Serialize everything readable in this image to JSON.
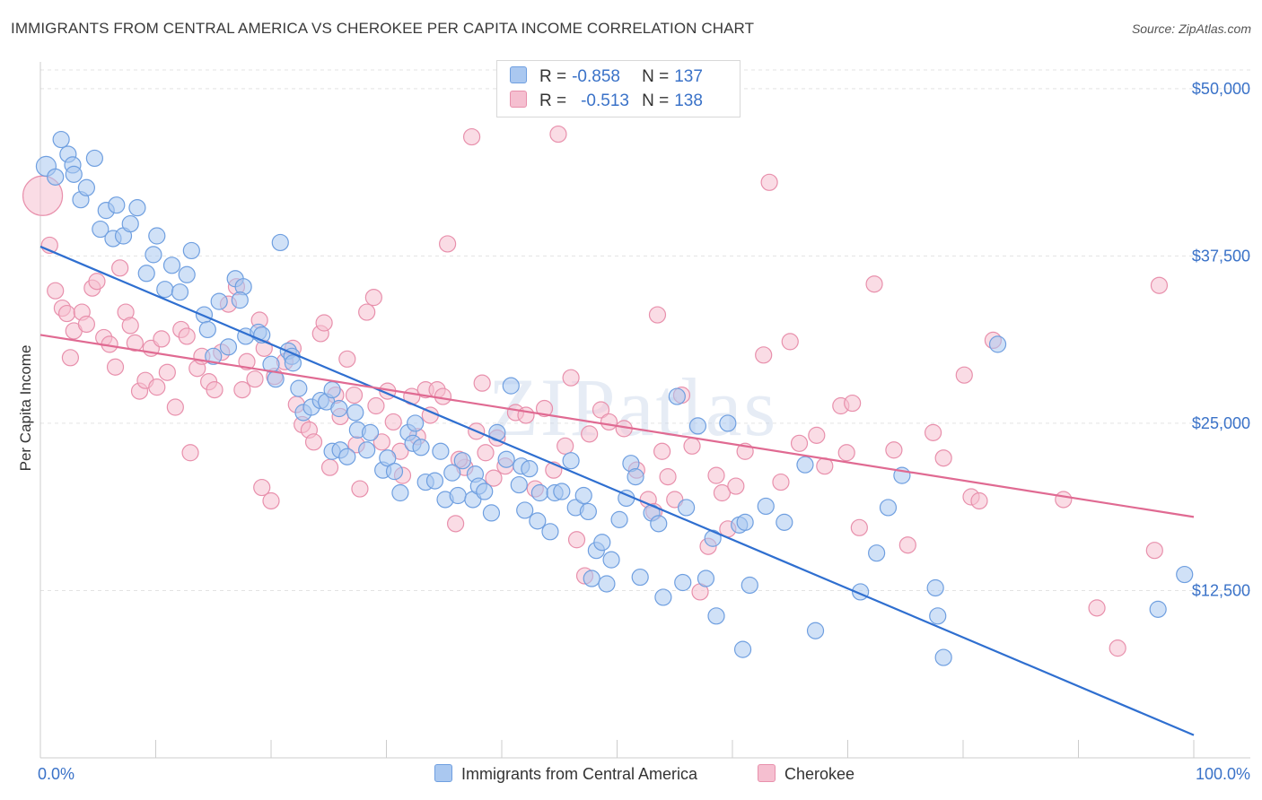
{
  "title": "IMMIGRANTS FROM CENTRAL AMERICA VS CHEROKEE PER CAPITA INCOME CORRELATION CHART",
  "source": "Source: ZipAtlas.com",
  "watermark": "ZIPatlas",
  "legend": {
    "r_label": "R =",
    "n_label": "N =",
    "series": [
      {
        "name": "Immigrants from Central America",
        "r": "-0.858",
        "n": "137",
        "color": "#6f9fe0",
        "fill": "#aac8f0",
        "line": "#2f6fd0"
      },
      {
        "name": "Cherokee",
        "r": "-0.513",
        "n": "138",
        "color": "#e890ac",
        "fill": "#f5bfd0",
        "line": "#e06a92"
      }
    ]
  },
  "chart_data": {
    "type": "scatter",
    "title": "IMMIGRANTS FROM CENTRAL AMERICA VS CHEROKEE PER CAPITA INCOME CORRELATION CHART",
    "xlabel": "",
    "ylabel": "Per Capita Income",
    "xlim": [
      0,
      100
    ],
    "ylim": [
      0,
      52000
    ],
    "x_tick_labels": [
      "0.0%",
      "100.0%"
    ],
    "y_ticks": [
      12500,
      25000,
      37500,
      50000
    ],
    "y_tick_labels": [
      "$12,500",
      "$25,000",
      "$37,500",
      "$50,000"
    ],
    "grid": true,
    "series": [
      {
        "name": "Immigrants from Central America",
        "trend": {
          "x": [
            0,
            100
          ],
          "y": [
            38200,
            1700
          ]
        },
        "points": [
          [
            0.5,
            44200
          ],
          [
            1.3,
            43400
          ],
          [
            1.8,
            46200
          ],
          [
            2.4,
            45100
          ],
          [
            2.8,
            44300
          ],
          [
            2.9,
            43600
          ],
          [
            3.5,
            41700
          ],
          [
            4.0,
            42600
          ],
          [
            4.7,
            44800
          ],
          [
            5.2,
            39500
          ],
          [
            5.7,
            40900
          ],
          [
            6.3,
            38800
          ],
          [
            6.6,
            41300
          ],
          [
            7.2,
            39000
          ],
          [
            7.8,
            39900
          ],
          [
            8.4,
            41100
          ],
          [
            9.2,
            36200
          ],
          [
            9.8,
            37600
          ],
          [
            10.1,
            39000
          ],
          [
            10.8,
            35000
          ],
          [
            11.4,
            36800
          ],
          [
            12.1,
            34800
          ],
          [
            12.7,
            36100
          ],
          [
            13.1,
            37900
          ],
          [
            14.2,
            33100
          ],
          [
            14.5,
            32000
          ],
          [
            15.0,
            30000
          ],
          [
            15.5,
            34100
          ],
          [
            16.3,
            30700
          ],
          [
            16.9,
            35800
          ],
          [
            17.6,
            35200
          ],
          [
            17.3,
            34200
          ],
          [
            17.8,
            31500
          ],
          [
            18.9,
            31800
          ],
          [
            19.2,
            31600
          ],
          [
            20.0,
            29400
          ],
          [
            20.4,
            28300
          ],
          [
            20.8,
            38500
          ],
          [
            21.5,
            30400
          ],
          [
            21.8,
            30000
          ],
          [
            21.9,
            29500
          ],
          [
            22.4,
            27600
          ],
          [
            22.8,
            25800
          ],
          [
            23.5,
            26200
          ],
          [
            24.3,
            26700
          ],
          [
            24.8,
            26600
          ],
          [
            25.3,
            27500
          ],
          [
            25.3,
            22900
          ],
          [
            25.9,
            26100
          ],
          [
            26.0,
            23000
          ],
          [
            26.6,
            22500
          ],
          [
            27.3,
            25800
          ],
          [
            27.5,
            24500
          ],
          [
            28.3,
            23000
          ],
          [
            28.6,
            24300
          ],
          [
            29.7,
            21500
          ],
          [
            30.1,
            22400
          ],
          [
            30.7,
            21400
          ],
          [
            31.2,
            19800
          ],
          [
            31.9,
            24300
          ],
          [
            32.3,
            23500
          ],
          [
            32.5,
            25000
          ],
          [
            33.0,
            23200
          ],
          [
            33.4,
            20600
          ],
          [
            34.2,
            20700
          ],
          [
            34.7,
            22900
          ],
          [
            35.1,
            19300
          ],
          [
            35.7,
            21300
          ],
          [
            36.2,
            19600
          ],
          [
            36.6,
            22200
          ],
          [
            37.5,
            19300
          ],
          [
            37.7,
            21200
          ],
          [
            38.0,
            20300
          ],
          [
            38.5,
            19900
          ],
          [
            39.1,
            18300
          ],
          [
            39.6,
            24300
          ],
          [
            40.4,
            22300
          ],
          [
            40.8,
            27800
          ],
          [
            41.5,
            20400
          ],
          [
            41.7,
            21800
          ],
          [
            42.0,
            18500
          ],
          [
            42.4,
            21600
          ],
          [
            43.1,
            17700
          ],
          [
            43.3,
            19800
          ],
          [
            44.2,
            16900
          ],
          [
            44.6,
            19800
          ],
          [
            45.2,
            19900
          ],
          [
            46.0,
            22200
          ],
          [
            46.4,
            18700
          ],
          [
            47.1,
            19600
          ],
          [
            47.5,
            18400
          ],
          [
            47.8,
            13400
          ],
          [
            48.2,
            15500
          ],
          [
            48.7,
            16100
          ],
          [
            49.1,
            13000
          ],
          [
            49.5,
            14800
          ],
          [
            50.2,
            17800
          ],
          [
            50.8,
            19400
          ],
          [
            51.2,
            22000
          ],
          [
            51.6,
            21000
          ],
          [
            52.0,
            13500
          ],
          [
            53.0,
            18300
          ],
          [
            53.6,
            17500
          ],
          [
            54.0,
            12000
          ],
          [
            55.2,
            27000
          ],
          [
            55.7,
            13100
          ],
          [
            56.0,
            18700
          ],
          [
            57.0,
            24800
          ],
          [
            57.7,
            13400
          ],
          [
            58.3,
            16400
          ],
          [
            58.6,
            10600
          ],
          [
            59.6,
            25000
          ],
          [
            60.6,
            17400
          ],
          [
            61.1,
            17600
          ],
          [
            60.9,
            8100
          ],
          [
            61.5,
            12900
          ],
          [
            62.9,
            18800
          ],
          [
            64.5,
            17600
          ],
          [
            66.3,
            21900
          ],
          [
            67.2,
            9500
          ],
          [
            71.1,
            12400
          ],
          [
            72.5,
            15300
          ],
          [
            73.5,
            18700
          ],
          [
            74.7,
            21100
          ],
          [
            77.6,
            12700
          ],
          [
            77.8,
            10600
          ],
          [
            78.3,
            7500
          ],
          [
            83.0,
            30900
          ],
          [
            99.2,
            13700
          ],
          [
            96.9,
            11100
          ]
        ]
      },
      {
        "name": "Cherokee",
        "trend": {
          "x": [
            0,
            100
          ],
          "y": [
            31600,
            18000
          ]
        },
        "points": [
          [
            0.2,
            42000
          ],
          [
            0.8,
            38300
          ],
          [
            1.3,
            34900
          ],
          [
            1.9,
            33600
          ],
          [
            2.3,
            33200
          ],
          [
            2.6,
            29900
          ],
          [
            2.9,
            31900
          ],
          [
            3.6,
            33300
          ],
          [
            4.0,
            32400
          ],
          [
            4.5,
            35100
          ],
          [
            4.9,
            35600
          ],
          [
            5.5,
            31400
          ],
          [
            6.0,
            30900
          ],
          [
            6.5,
            29200
          ],
          [
            6.9,
            36600
          ],
          [
            7.4,
            33300
          ],
          [
            7.8,
            32300
          ],
          [
            8.2,
            31000
          ],
          [
            8.6,
            27400
          ],
          [
            9.1,
            28200
          ],
          [
            9.6,
            30600
          ],
          [
            10.1,
            27700
          ],
          [
            10.5,
            31300
          ],
          [
            11.0,
            28800
          ],
          [
            11.7,
            26200
          ],
          [
            12.2,
            32000
          ],
          [
            12.7,
            31500
          ],
          [
            13.0,
            22800
          ],
          [
            13.6,
            29100
          ],
          [
            14.0,
            30000
          ],
          [
            14.6,
            28100
          ],
          [
            15.1,
            27500
          ],
          [
            15.7,
            30300
          ],
          [
            16.3,
            33900
          ],
          [
            17.0,
            35200
          ],
          [
            17.5,
            27500
          ],
          [
            17.9,
            29600
          ],
          [
            18.6,
            28300
          ],
          [
            19.0,
            32700
          ],
          [
            19.4,
            30600
          ],
          [
            19.2,
            20200
          ],
          [
            20.0,
            19200
          ],
          [
            20.3,
            28500
          ],
          [
            21.2,
            29600
          ],
          [
            21.9,
            30600
          ],
          [
            22.2,
            26400
          ],
          [
            22.7,
            24900
          ],
          [
            23.3,
            24500
          ],
          [
            23.7,
            23600
          ],
          [
            24.3,
            31700
          ],
          [
            24.6,
            32500
          ],
          [
            25.1,
            21700
          ],
          [
            25.6,
            27100
          ],
          [
            26.0,
            25500
          ],
          [
            26.6,
            29800
          ],
          [
            27.2,
            27100
          ],
          [
            27.4,
            23400
          ],
          [
            27.7,
            20100
          ],
          [
            28.3,
            33300
          ],
          [
            28.9,
            34400
          ],
          [
            29.1,
            26300
          ],
          [
            29.6,
            23600
          ],
          [
            30.1,
            27400
          ],
          [
            30.6,
            25100
          ],
          [
            31.2,
            22900
          ],
          [
            31.4,
            21100
          ],
          [
            32.2,
            27000
          ],
          [
            32.7,
            24000
          ],
          [
            33.4,
            27500
          ],
          [
            33.8,
            25600
          ],
          [
            34.4,
            27500
          ],
          [
            34.9,
            27000
          ],
          [
            35.3,
            38400
          ],
          [
            36.0,
            17500
          ],
          [
            36.8,
            21700
          ],
          [
            36.3,
            22300
          ],
          [
            37.4,
            46400
          ],
          [
            37.8,
            24400
          ],
          [
            38.3,
            28000
          ],
          [
            38.6,
            22800
          ],
          [
            39.3,
            20900
          ],
          [
            39.6,
            23900
          ],
          [
            40.3,
            21800
          ],
          [
            41.2,
            25800
          ],
          [
            42.1,
            25600
          ],
          [
            42.9,
            20100
          ],
          [
            43.7,
            26100
          ],
          [
            44.5,
            21500
          ],
          [
            44.9,
            46600
          ],
          [
            45.5,
            23300
          ],
          [
            46.0,
            28400
          ],
          [
            46.5,
            16300
          ],
          [
            47.2,
            13600
          ],
          [
            47.6,
            24200
          ],
          [
            48.6,
            26000
          ],
          [
            49.3,
            25100
          ],
          [
            50.6,
            24600
          ],
          [
            51.7,
            21500
          ],
          [
            52.7,
            19300
          ],
          [
            53.2,
            18400
          ],
          [
            53.5,
            33100
          ],
          [
            53.9,
            22900
          ],
          [
            54.4,
            21000
          ],
          [
            55.0,
            19300
          ],
          [
            55.6,
            27100
          ],
          [
            56.5,
            23300
          ],
          [
            57.2,
            12400
          ],
          [
            57.9,
            15800
          ],
          [
            58.6,
            21100
          ],
          [
            59.1,
            19800
          ],
          [
            59.6,
            17100
          ],
          [
            60.3,
            20300
          ],
          [
            61.1,
            22900
          ],
          [
            62.7,
            30100
          ],
          [
            63.2,
            43000
          ],
          [
            64.2,
            20600
          ],
          [
            65.0,
            31100
          ],
          [
            65.8,
            23500
          ],
          [
            67.3,
            24100
          ],
          [
            68.0,
            21800
          ],
          [
            69.4,
            26300
          ],
          [
            69.9,
            22800
          ],
          [
            70.4,
            26500
          ],
          [
            71.0,
            17200
          ],
          [
            72.3,
            35400
          ],
          [
            74.0,
            23000
          ],
          [
            75.2,
            15900
          ],
          [
            77.4,
            24300
          ],
          [
            78.3,
            22400
          ],
          [
            80.1,
            28600
          ],
          [
            80.7,
            19500
          ],
          [
            81.4,
            19200
          ],
          [
            82.6,
            31200
          ],
          [
            88.7,
            19300
          ],
          [
            91.6,
            11200
          ],
          [
            93.4,
            8200
          ],
          [
            96.6,
            15500
          ],
          [
            97.0,
            35300
          ]
        ]
      }
    ]
  }
}
